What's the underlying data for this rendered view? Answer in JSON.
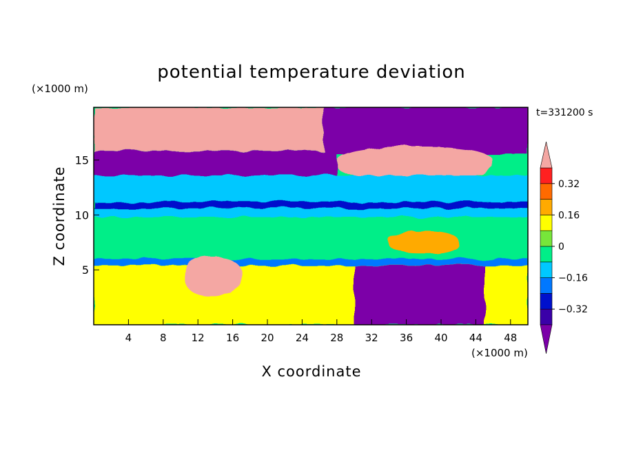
{
  "chart_data": {
    "type": "heatmap",
    "title": "potential temperature deviation",
    "xlabel": "X coordinate",
    "ylabel": "Z coordinate",
    "x_unit": "(×1000 m)",
    "y_unit": "(×1000 m)",
    "timestamp": "t=331200 s",
    "xlim": [
      0,
      50
    ],
    "ylim": [
      0,
      19.8
    ],
    "x_ticks": [
      4,
      8,
      12,
      16,
      20,
      24,
      28,
      32,
      36,
      40,
      44,
      48
    ],
    "y_ticks": [
      5,
      10,
      15
    ],
    "colorbar": {
      "levels": [
        -0.4,
        -0.32,
        -0.24,
        -0.16,
        -0.08,
        0,
        0.08,
        0.16,
        0.24,
        0.32,
        0.4
      ],
      "tick_labels": [
        "0.32",
        "0.16",
        "0",
        "−0.16",
        "−0.32"
      ],
      "tick_values": [
        0.32,
        0.16,
        0,
        -0.16,
        -0.32
      ],
      "colors": [
        "#7b00a8",
        "#3a00a8",
        "#0010cc",
        "#0078ff",
        "#00c8ff",
        "#00ee88",
        "#77e63a",
        "#ffff00",
        "#ffaa00",
        "#ff6a00",
        "#ff2020",
        "#f4a7a3"
      ]
    },
    "regions": [
      {
        "name": "upper-pink-left",
        "x": [
          0,
          26.5
        ],
        "z": [
          15.8,
          19.8
        ],
        "value": 0.45
      },
      {
        "name": "upper-purple-band",
        "x": [
          0,
          28
        ],
        "z": [
          13.6,
          15.8
        ],
        "value": -0.45
      },
      {
        "name": "upper-purple-right",
        "x": [
          26.5,
          50
        ],
        "z": [
          15.5,
          19.8
        ],
        "value": -0.45
      },
      {
        "name": "cloud-top-pink",
        "x": [
          28,
          46
        ],
        "z": [
          13.2,
          16.2
        ],
        "value": 0.45
      },
      {
        "name": "cyan-band-upper",
        "x": [
          0,
          50
        ],
        "z": [
          11.2,
          13.6
        ],
        "value": -0.12
      },
      {
        "name": "dark-blue-band",
        "x": [
          0,
          50
        ],
        "z": [
          10.6,
          11.2
        ],
        "value": -0.28
      },
      {
        "name": "cyan-band-lower",
        "x": [
          0,
          50
        ],
        "z": [
          9.8,
          10.6
        ],
        "value": -0.12
      },
      {
        "name": "green-mid",
        "x": [
          0,
          50
        ],
        "z": [
          6.0,
          9.8
        ],
        "value": -0.04
      },
      {
        "name": "yellow-core",
        "x": [
          34,
          42
        ],
        "z": [
          6.5,
          8.5
        ],
        "value": 0.18
      },
      {
        "name": "blue-band-low",
        "x": [
          0,
          50
        ],
        "z": [
          5.4,
          6.0
        ],
        "value": -0.2
      },
      {
        "name": "boundary-layer",
        "x": [
          0,
          50
        ],
        "z": [
          0,
          5.4
        ],
        "value": 0.1
      },
      {
        "name": "cold-pool-purple",
        "x": [
          30,
          45
        ],
        "z": [
          0,
          5.4
        ],
        "value": -0.45
      },
      {
        "name": "warm-bubble-pink",
        "x": [
          10.5,
          17
        ],
        "z": [
          2.6,
          6.2
        ],
        "value": 0.45
      }
    ]
  }
}
